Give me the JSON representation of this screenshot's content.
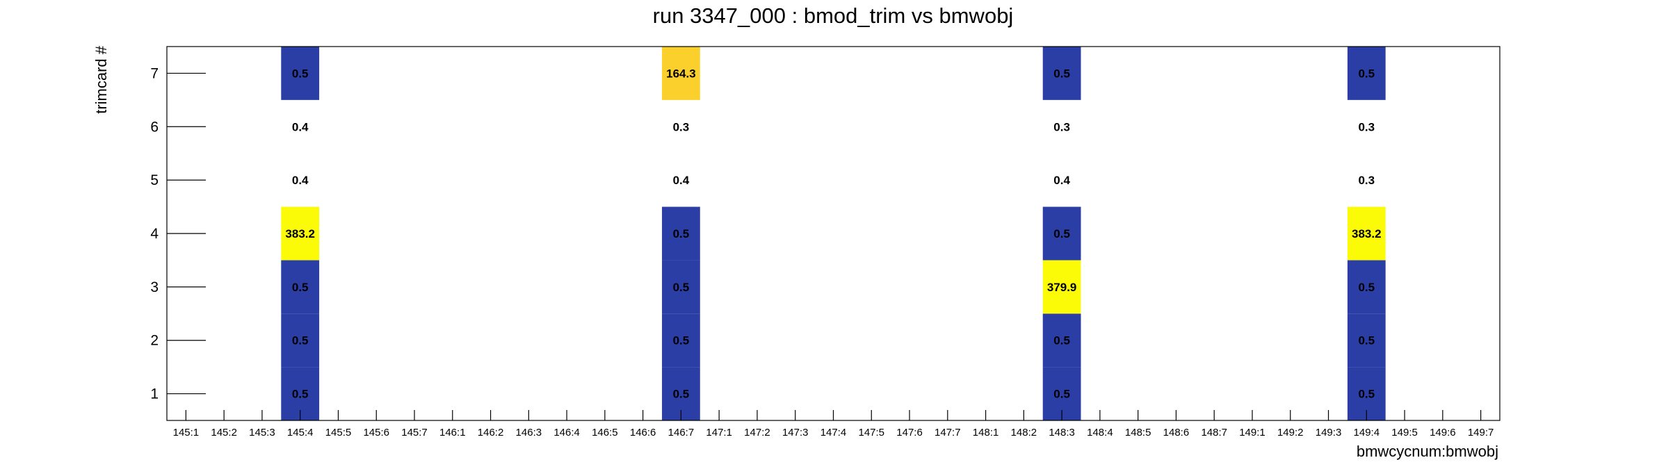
{
  "chart_data": {
    "type": "heatmap",
    "title": "run 3347_000 : bmod_trim vs bmwobj",
    "xlabel": "bmwcycnum:bmwobj",
    "ylabel": "trimcard #",
    "x_categories": [
      "145:1",
      "145:2",
      "145:3",
      "145:4",
      "145:5",
      "145:6",
      "145:7",
      "146:1",
      "146:2",
      "146:3",
      "146:4",
      "146:5",
      "146:6",
      "146:7",
      "147:1",
      "147:2",
      "147:3",
      "147:4",
      "147:5",
      "147:6",
      "147:7",
      "148:1",
      "148:2",
      "148:3",
      "148:4",
      "148:5",
      "148:6",
      "148:7",
      "149:1",
      "149:2",
      "149:3",
      "149:4",
      "149:5",
      "149:6",
      "149:7"
    ],
    "y_ticks": [
      "1",
      "2",
      "3",
      "4",
      "5",
      "6",
      "7"
    ],
    "ylim": [
      0.5,
      7.5
    ],
    "cells": [
      {
        "x": "145:4",
        "y": 1,
        "value": 0.5,
        "label": "0.5"
      },
      {
        "x": "145:4",
        "y": 2,
        "value": 0.5,
        "label": "0.5"
      },
      {
        "x": "145:4",
        "y": 3,
        "value": 0.5,
        "label": "0.5"
      },
      {
        "x": "145:4",
        "y": 4,
        "value": 383.2,
        "label": "383.2"
      },
      {
        "x": "145:4",
        "y": 5,
        "value": 0.4,
        "label": "0.4"
      },
      {
        "x": "145:4",
        "y": 6,
        "value": 0.4,
        "label": "0.4"
      },
      {
        "x": "145:4",
        "y": 7,
        "value": 0.5,
        "label": "0.5"
      },
      {
        "x": "146:7",
        "y": 1,
        "value": 0.5,
        "label": "0.5"
      },
      {
        "x": "146:7",
        "y": 2,
        "value": 0.5,
        "label": "0.5"
      },
      {
        "x": "146:7",
        "y": 3,
        "value": 0.5,
        "label": "0.5"
      },
      {
        "x": "146:7",
        "y": 4,
        "value": 0.5,
        "label": "0.5"
      },
      {
        "x": "146:7",
        "y": 5,
        "value": 0.4,
        "label": "0.4"
      },
      {
        "x": "146:7",
        "y": 6,
        "value": 0.3,
        "label": "0.3"
      },
      {
        "x": "146:7",
        "y": 7,
        "value": 164.3,
        "label": "164.3"
      },
      {
        "x": "148:3",
        "y": 1,
        "value": 0.5,
        "label": "0.5"
      },
      {
        "x": "148:3",
        "y": 2,
        "value": 0.5,
        "label": "0.5"
      },
      {
        "x": "148:3",
        "y": 3,
        "value": 379.9,
        "label": "379.9"
      },
      {
        "x": "148:3",
        "y": 4,
        "value": 0.5,
        "label": "0.5"
      },
      {
        "x": "148:3",
        "y": 5,
        "value": 0.4,
        "label": "0.4"
      },
      {
        "x": "148:3",
        "y": 6,
        "value": 0.3,
        "label": "0.3"
      },
      {
        "x": "148:3",
        "y": 7,
        "value": 0.5,
        "label": "0.5"
      },
      {
        "x": "149:4",
        "y": 1,
        "value": 0.5,
        "label": "0.5"
      },
      {
        "x": "149:4",
        "y": 2,
        "value": 0.5,
        "label": "0.5"
      },
      {
        "x": "149:4",
        "y": 3,
        "value": 0.5,
        "label": "0.5"
      },
      {
        "x": "149:4",
        "y": 4,
        "value": 383.2,
        "label": "383.2"
      },
      {
        "x": "149:4",
        "y": 5,
        "value": 0.3,
        "label": "0.3"
      },
      {
        "x": "149:4",
        "y": 6,
        "value": 0.3,
        "label": "0.3"
      },
      {
        "x": "149:4",
        "y": 7,
        "value": 0.5,
        "label": "0.5"
      }
    ],
    "colors": {
      "low": "#2a3ea6",
      "mid": "#fcd02c",
      "high": "#fbfb07",
      "zero": "#ffffff"
    },
    "grid": false,
    "legend": "none"
  }
}
